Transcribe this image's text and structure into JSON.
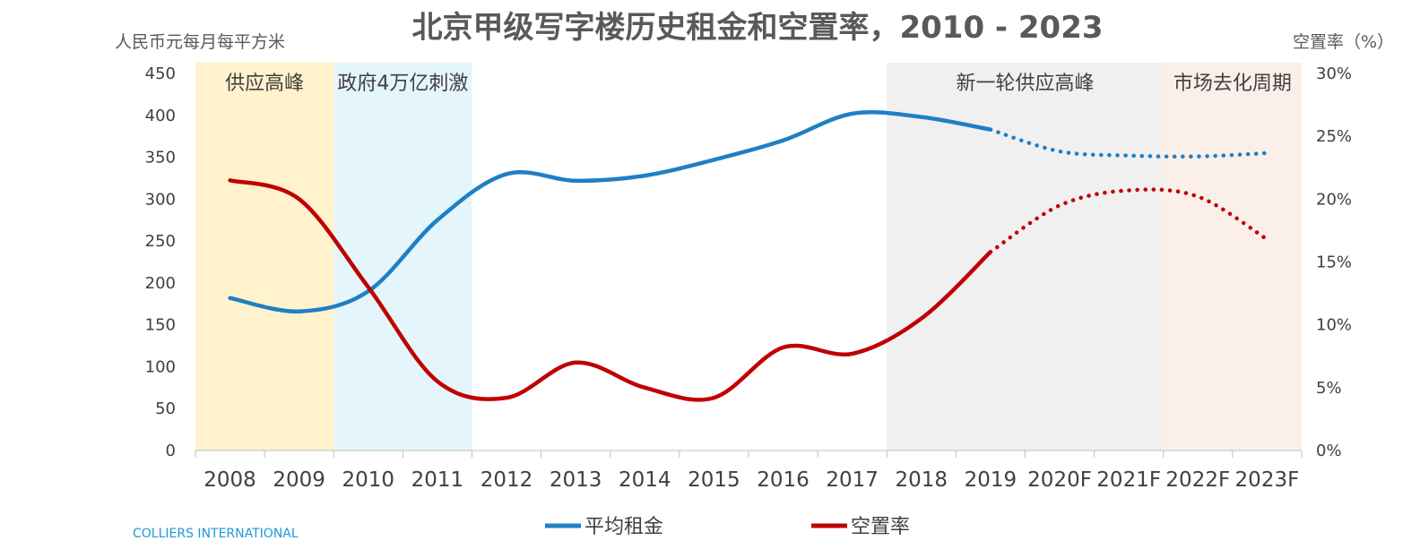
{
  "chart_data": {
    "type": "line",
    "title": "北京甲级写字楼历史租金和空置率，2010 - 2023",
    "y_left_label": "人民币元每月每平方米",
    "y_right_label": "空置率（%）",
    "categories": [
      "2008",
      "2009",
      "2010",
      "2011",
      "2012",
      "2013",
      "2014",
      "2015",
      "2016",
      "2017",
      "2018",
      "2019",
      "2020F",
      "2021F",
      "2022F",
      "2023F"
    ],
    "y_left_ticks": [
      "0",
      "50",
      "100",
      "150",
      "200",
      "250",
      "300",
      "350",
      "400",
      "450"
    ],
    "y_right_ticks": [
      "0%",
      "5%",
      "10%",
      "15%",
      "20%",
      "25%",
      "30%"
    ],
    "y_left_range": [
      0,
      450
    ],
    "y_right_range": [
      0,
      30
    ],
    "series": [
      {
        "name": "平均租金",
        "axis": "left",
        "color": "#1f7fc4",
        "values": [
          182,
          166,
          190,
          275,
          330,
          322,
          328,
          347,
          370,
          402,
          398,
          383,
          357,
          352,
          351,
          355
        ],
        "forecast_from_index": 11
      },
      {
        "name": "空置率",
        "axis": "right",
        "color": "#c00000",
        "values": [
          21.5,
          20.0,
          13.0,
          5.5,
          4.2,
          7.0,
          5.0,
          4.2,
          8.2,
          7.7,
          10.5,
          15.8,
          19.5,
          20.7,
          20.2,
          16.8
        ],
        "forecast_from_index": 11
      }
    ],
    "periods": [
      {
        "label": "供应高峰",
        "from": "2008",
        "to": "2009",
        "color": "#fff2cc"
      },
      {
        "label": "政府4万亿刺激",
        "from": "2010",
        "to": "2011",
        "color": "#e5f5fc"
      },
      {
        "label": "新一轮供应高峰",
        "from": "2018",
        "to": "2021F",
        "color": "#f0f0f0"
      },
      {
        "label": "市场去化周期",
        "from": "2022F",
        "to": "2023F",
        "color": "#fbefea"
      }
    ],
    "legend_position": "bottom",
    "grid": false
  },
  "source": "COLLIERS INTERNATIONAL"
}
